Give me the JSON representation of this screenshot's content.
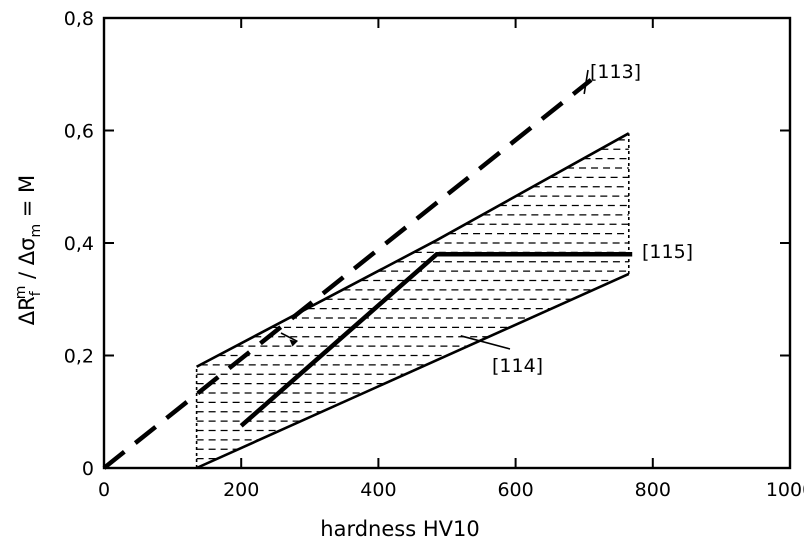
{
  "chart_data": {
    "type": "line",
    "title": "",
    "xlabel": "hardness HV10",
    "ylabel": "ΔR_f^m / Δσ_m = M",
    "ylabel_parts": {
      "delta1": "Δ",
      "R": "R",
      "sub_f": "f",
      "sup_m": "m",
      "slash": " / ",
      "delta2": "Δ",
      "sigma": "σ",
      "sub_m": "m",
      "eq": " = M"
    },
    "xlim": [
      0,
      1000
    ],
    "ylim": [
      0,
      0.8
    ],
    "grid": false,
    "x_ticks": [
      0,
      200,
      400,
      600,
      800,
      1000
    ],
    "x_tick_labels": [
      "0",
      "200",
      "400",
      "600",
      "800",
      "1000"
    ],
    "y_ticks": [
      0,
      0.2,
      0.4,
      0.6,
      0.8
    ],
    "y_tick_labels": [
      "0",
      "0,2",
      "0,4",
      "0,6",
      "0,8"
    ],
    "series": [
      {
        "name": "[113]",
        "style": "dashed",
        "x": [
          0,
          710
        ],
        "y": [
          0,
          0.69
        ]
      },
      {
        "name": "[115]",
        "style": "solid-thick",
        "x": [
          200,
          485,
          770
        ],
        "y": [
          0.075,
          0.38,
          0.38
        ]
      },
      {
        "name": "[114]",
        "style": "solid",
        "x": [
          135,
          765
        ],
        "y": [
          0,
          0.345
        ]
      }
    ],
    "scatter_band": {
      "style": "hatched",
      "lower_boundary": {
        "x": [
          135,
          765
        ],
        "y": [
          0,
          0.345
        ]
      },
      "upper_boundary": {
        "x": [
          135,
          485,
          765
        ],
        "y": [
          0.18,
          0.405,
          0.595
        ]
      }
    }
  },
  "colors": {
    "line": "#000000",
    "background": "#ffffff"
  }
}
